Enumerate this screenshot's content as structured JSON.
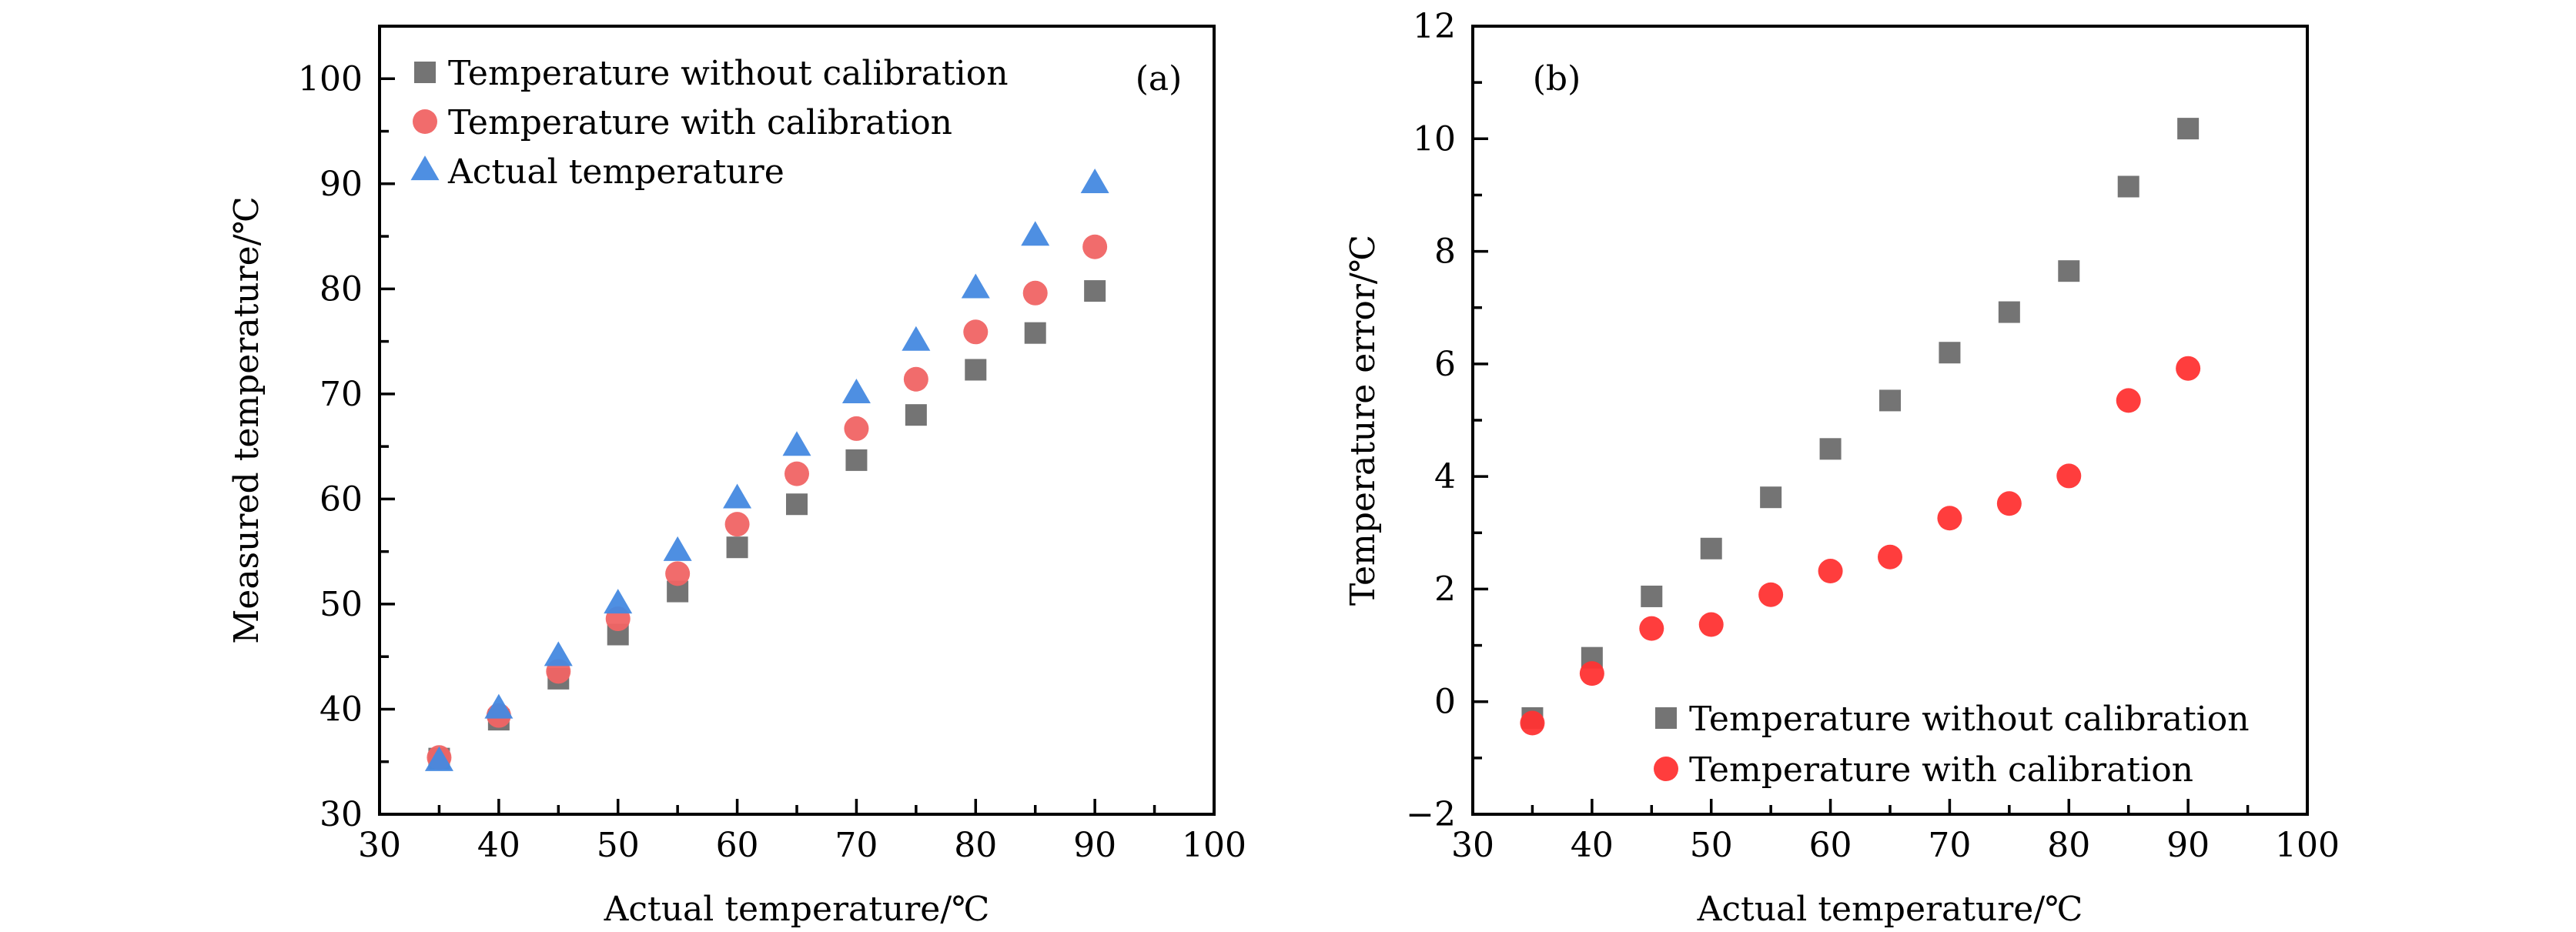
{
  "chart_data": [
    {
      "type": "scatter",
      "panel_label": "(a)",
      "title": "",
      "xlabel": "Actual temperature/℃",
      "ylabel": "Measured temperature/℃",
      "xlim": [
        30,
        100
      ],
      "ylim": [
        30,
        105
      ],
      "xticks": [
        30,
        40,
        50,
        60,
        70,
        80,
        90,
        100
      ],
      "yticks": [
        30,
        40,
        50,
        60,
        70,
        80,
        90,
        100
      ],
      "x_minor_step": 5,
      "y_minor_step": 5,
      "grid": false,
      "legend_position": "top-left",
      "x": [
        35,
        40,
        45,
        50,
        55,
        60,
        65,
        70,
        75,
        80,
        85,
        90
      ],
      "series": [
        {
          "name": "Temperature without calibration",
          "marker": "square",
          "color": "#747474",
          "values": [
            35.3,
            39.0,
            42.9,
            47.1,
            51.2,
            55.4,
            59.5,
            63.7,
            68.0,
            72.3,
            75.8,
            79.8
          ]
        },
        {
          "name": "Temperature with calibration",
          "marker": "circle",
          "color": "#F06464",
          "values": [
            35.4,
            39.4,
            43.6,
            48.6,
            52.9,
            57.6,
            62.4,
            66.7,
            71.4,
            75.9,
            79.6,
            84.0
          ]
        },
        {
          "name": "Actual temperature",
          "marker": "triangle",
          "color": "#4589E0",
          "values": [
            35,
            40,
            45,
            50,
            55,
            60,
            65,
            70,
            75,
            80,
            85,
            90
          ]
        }
      ]
    },
    {
      "type": "scatter",
      "panel_label": "(b)",
      "title": "",
      "xlabel": "Actual temperature/℃",
      "ylabel": "Temperature error/℃",
      "xlim": [
        30,
        100
      ],
      "ylim": [
        -2,
        12
      ],
      "xticks": [
        30,
        40,
        50,
        60,
        70,
        80,
        90,
        100
      ],
      "yticks": [
        -2,
        0,
        2,
        4,
        6,
        8,
        10,
        12
      ],
      "ytick_labels": [
        "−2",
        "0",
        "2",
        "4",
        "6",
        "8",
        "10",
        "12"
      ],
      "x_minor_step": 5,
      "y_minor_step": 1,
      "grid": false,
      "legend_position": "bottom-right",
      "x": [
        35,
        40,
        45,
        50,
        55,
        60,
        65,
        70,
        75,
        80,
        85,
        90
      ],
      "series": [
        {
          "name": "Temperature without calibration",
          "marker": "square",
          "color": "#747474",
          "values": [
            -0.29,
            0.78,
            1.87,
            2.72,
            3.63,
            4.49,
            5.35,
            6.2,
            6.92,
            7.65,
            9.15,
            10.18
          ]
        },
        {
          "name": "Temperature with calibration",
          "marker": "circle",
          "color": "#FF3333",
          "values": [
            -0.38,
            0.5,
            1.3,
            1.37,
            1.9,
            2.32,
            2.57,
            3.26,
            3.52,
            4.01,
            5.35,
            5.92
          ]
        }
      ]
    }
  ]
}
